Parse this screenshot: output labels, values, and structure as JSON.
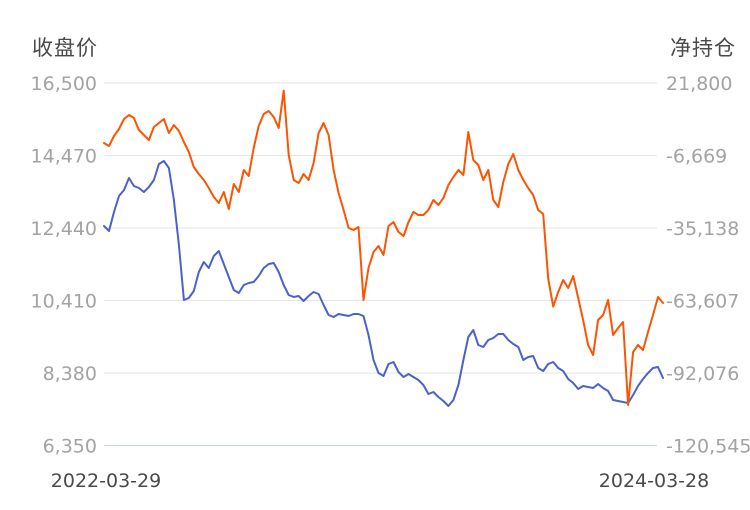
{
  "chart": {
    "left_axis_title": "收盘价",
    "right_axis_title": "净持仓",
    "x_label_start": "2022-03-29",
    "x_label_end": "2024-03-28",
    "style": {
      "close_line_color": "#4a62c9",
      "position_line_color": "#fb5502",
      "grid_color": "#e6e6e6",
      "axis_line_color": "#ccd6eb",
      "tick_text_color": "#a3a3a3",
      "title_text_color": "#4a4a4a"
    }
  },
  "chart_data": {
    "type": "line",
    "title": "",
    "x_range": [
      "2022-03-29",
      "2024-03-28"
    ],
    "grid": "horizontal",
    "legend": "none",
    "left_axis": {
      "title": "收盘价",
      "range": [
        6350,
        16500
      ],
      "ticks": [
        16500,
        14470,
        12440,
        10410,
        8380,
        6350
      ],
      "tick_labels": [
        "16,500",
        "14,470",
        "12,440",
        "10,410",
        "8,380",
        "6,350"
      ]
    },
    "right_axis": {
      "title": "净持仓",
      "range": [
        -120545,
        21800
      ],
      "ticks": [
        21800,
        -6669,
        -35138,
        -63607,
        -92076,
        -120545
      ],
      "tick_labels": [
        "21,800",
        "-6,669",
        "-35,138",
        "-63,607",
        "-92,076",
        "-120,545"
      ]
    },
    "series": [
      {
        "name": "收盘价",
        "axis": "left",
        "color": "#4a62c9",
        "values": [
          12496,
          12356,
          12888,
          13336,
          13504,
          13840,
          13616,
          13560,
          13448,
          13588,
          13784,
          14232,
          14316,
          14120,
          13224,
          11964,
          10424,
          10480,
          10676,
          11208,
          11488,
          11320,
          11656,
          11796,
          11432,
          11068,
          10704,
          10620,
          10844,
          10900,
          10928,
          11096,
          11320,
          11432,
          11460,
          11208,
          10844,
          10564,
          10508,
          10536,
          10396,
          10536,
          10648,
          10592,
          10284,
          10004,
          9948,
          10032,
          10004,
          9976,
          10032,
          10032,
          9976,
          9444,
          8744,
          8380,
          8296,
          8632,
          8688,
          8408,
          8268,
          8352,
          8268,
          8184,
          8044,
          7792,
          7848,
          7708,
          7596,
          7456,
          7624,
          8044,
          8744,
          9388,
          9584,
          9164,
          9108,
          9304,
          9360,
          9472,
          9472,
          9304,
          9192,
          9108,
          8744,
          8828,
          8856,
          8520,
          8436,
          8632,
          8688,
          8520,
          8436,
          8212,
          8100,
          7932,
          8016,
          7988,
          7960,
          8072,
          7960,
          7876,
          7624,
          7596,
          7568,
          7540,
          7764,
          8016,
          8212,
          8380,
          8520,
          8548,
          8240
        ]
      },
      {
        "name": "净持仓",
        "axis": "right",
        "color": "#fb5502",
        "values": [
          -1760,
          -2940,
          990,
          3740,
          7660,
          9230,
          8060,
          3340,
          1380,
          -580,
          4520,
          6090,
          7660,
          2170,
          5310,
          2950,
          -1370,
          -5300,
          -11190,
          -13940,
          -16290,
          -19440,
          -22970,
          -25330,
          -21010,
          -27680,
          -17860,
          -21010,
          -12370,
          -14720,
          -3720,
          4920,
          9630,
          10800,
          8450,
          4130,
          18800,
          -6480,
          -16290,
          -17470,
          -13940,
          -16290,
          -9620,
          2170,
          6090,
          1380,
          -12370,
          -21400,
          -28080,
          -35140,
          -35930,
          -34750,
          -63420,
          -50850,
          -44570,
          -42210,
          -45750,
          -34360,
          -32790,
          -36710,
          -38290,
          -32790,
          -28860,
          -30040,
          -30040,
          -28080,
          -24150,
          -26110,
          -23360,
          -18260,
          -15120,
          -12370,
          -14330,
          2560,
          -8440,
          -10400,
          -16290,
          -12370,
          -24150,
          -26900,
          -17080,
          -10010,
          -6080,
          -12370,
          -16290,
          -19440,
          -22180,
          -28080,
          -29650,
          -55000,
          -66000,
          -60270,
          -55560,
          -58700,
          -53990,
          -62630,
          -71270,
          -81090,
          -85020,
          -71270,
          -69300,
          -63420,
          -77160,
          -74410,
          -72060,
          -104660,
          -83840,
          -81090,
          -83050,
          -75980,
          -69300,
          -62230,
          -64590
        ]
      }
    ]
  }
}
